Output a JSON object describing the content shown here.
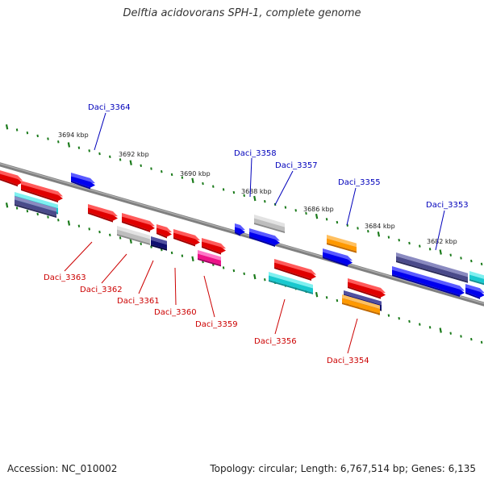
{
  "title": "Delftia acidovorans SPH-1, complete genome",
  "footer": {
    "accession": "Accession: NC_010002",
    "summary": "Topology: circular; Length: 6,767,514 bp; Genes: 6,135"
  },
  "colors": {
    "label_top": "#0000bb",
    "label_bottom": "#cc0000",
    "scale_ticks": "#1a7a1a",
    "genome_line": "#808080"
  },
  "scale_labels": [
    "3694 kbp",
    "3692 kbp",
    "3690 kbp",
    "3688 kbp",
    "3686 kbp",
    "3684 kbp",
    "3682 kbp"
  ],
  "genes_top": [
    {
      "id": "Daci_3364"
    },
    {
      "id": "Daci_3358"
    },
    {
      "id": "Daci_3357"
    },
    {
      "id": "Daci_3355"
    },
    {
      "id": "Daci_3353"
    }
  ],
  "genes_bottom": [
    {
      "id": "Daci_3363"
    },
    {
      "id": "Daci_3362"
    },
    {
      "id": "Daci_3361"
    },
    {
      "id": "Daci_3360"
    },
    {
      "id": "Daci_3359"
    },
    {
      "id": "Daci_3356"
    },
    {
      "id": "Daci_3354"
    }
  ]
}
